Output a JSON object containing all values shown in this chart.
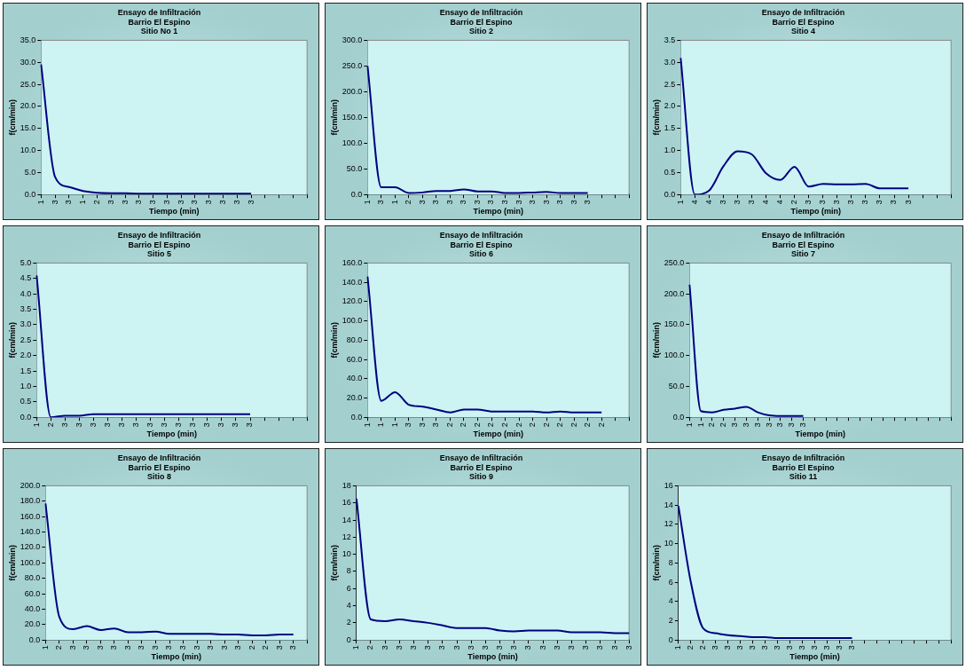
{
  "chart_data": [
    {
      "type": "line",
      "title": "Ensayo de Infiltración",
      "subtitle": "Barrio El Espino\nSitio No 1",
      "xlabel": "Tiempo (min)",
      "ylabel": "f(cm/min)",
      "marker": "none",
      "categories": [
        "1",
        "3",
        "3",
        "1",
        "2",
        "3",
        "3",
        "3",
        "3",
        "3",
        "3",
        "3",
        "3",
        "3",
        "3",
        "3",
        null,
        null,
        null,
        null
      ],
      "series": [
        {
          "color": "#000080",
          "values": [
            29.5,
            4.0,
            1.7,
            0.8,
            0.4,
            0.3,
            0.3,
            0.2,
            0.2,
            0.2,
            0.2,
            0.2,
            0.2,
            0.2,
            0.2,
            0.2,
            null,
            null,
            null,
            null
          ]
        }
      ],
      "ylim": [
        0,
        35
      ],
      "yticks": [
        {
          "value": 0,
          "label": "0.0"
        },
        {
          "value": 5,
          "label": "5.0"
        },
        {
          "value": 10,
          "label": "10.0"
        },
        {
          "value": 15,
          "label": "15.0"
        },
        {
          "value": 20,
          "label": "20.0"
        },
        {
          "value": 25,
          "label": "25.0"
        },
        {
          "value": 30,
          "label": "30.0"
        },
        {
          "value": 35,
          "label": "35.0"
        }
      ]
    },
    {
      "type": "line",
      "title": "Ensayo de Infiltración",
      "subtitle": "Barrio El Espino\nSitio 2",
      "xlabel": "Tiempo (min)",
      "ylabel": "f(cm/min)",
      "marker": "none",
      "categories": [
        "1",
        "3",
        "1",
        "2",
        "3",
        "3",
        "3",
        "3",
        "3",
        "3",
        "3",
        "3",
        "3",
        "3",
        "3",
        "3",
        "3",
        null,
        null,
        null
      ],
      "series": [
        {
          "color": "#000080",
          "values": [
            250,
            14,
            14,
            3,
            4,
            7,
            7,
            10,
            6,
            6,
            3,
            3,
            4,
            5,
            3,
            3,
            3,
            null,
            null,
            null
          ]
        }
      ],
      "ylim": [
        0,
        300
      ],
      "yticks": [
        {
          "value": 0,
          "label": "0.0"
        },
        {
          "value": 50,
          "label": "50.0"
        },
        {
          "value": 100,
          "label": "100.0"
        },
        {
          "value": 150,
          "label": "150.0"
        },
        {
          "value": 200,
          "label": "200.0"
        },
        {
          "value": 250,
          "label": "250.0"
        },
        {
          "value": 300,
          "label": "300.0"
        }
      ]
    },
    {
      "type": "line",
      "title": "Ensayo de Infiltración",
      "subtitle": "Barrio El Espino\nSitio 4",
      "xlabel": "Tiempo (min)",
      "ylabel": "f(cm/min)",
      "marker": "none",
      "categories": [
        "1",
        "4",
        "4",
        "3",
        "3",
        "3",
        "4",
        "4",
        "2",
        "3",
        "3",
        "3",
        "3",
        "3",
        "3",
        "3",
        "3",
        null,
        null,
        null
      ],
      "series": [
        {
          "color": "#000080",
          "values": [
            3.1,
            0.0,
            0.09,
            0.64,
            0.98,
            0.91,
            0.48,
            0.33,
            0.63,
            0.18,
            0.24,
            0.23,
            0.23,
            0.24,
            0.14,
            0.14,
            0.14,
            null,
            null,
            null
          ]
        }
      ],
      "ylim": [
        0,
        3.5
      ],
      "yticks": [
        {
          "value": 0,
          "label": "0.0"
        },
        {
          "value": 0.5,
          "label": "0.5"
        },
        {
          "value": 1,
          "label": "1.0"
        },
        {
          "value": 1.5,
          "label": "1.5"
        },
        {
          "value": 2,
          "label": "2.0"
        },
        {
          "value": 2.5,
          "label": "2.5"
        },
        {
          "value": 3,
          "label": "3.0"
        },
        {
          "value": 3.5,
          "label": "3.5"
        }
      ]
    },
    {
      "type": "line",
      "title": "Ensayo de Infiltración",
      "subtitle": "Barrio El Espino\nSitio 5",
      "xlabel": "Tiempo (min)",
      "ylabel": "f(cm/min)",
      "marker": "none",
      "categories": [
        "1",
        "2",
        "3",
        "3",
        "3",
        "3",
        "3",
        "3",
        "3",
        "3",
        "3",
        "3",
        "3",
        "3",
        "3",
        "3",
        null,
        null,
        null,
        null
      ],
      "series": [
        {
          "color": "#000080",
          "values": [
            4.6,
            0.0,
            0.05,
            0.05,
            0.1,
            0.1,
            0.1,
            0.1,
            0.1,
            0.1,
            0.1,
            0.1,
            0.1,
            0.1,
            0.1,
            0.1,
            null,
            null,
            null,
            null
          ]
        }
      ],
      "ylim": [
        0,
        5
      ],
      "yticks": [
        {
          "value": 0,
          "label": "0.0"
        },
        {
          "value": 0.5,
          "label": "0.5"
        },
        {
          "value": 1,
          "label": "1.0"
        },
        {
          "value": 1.5,
          "label": "1.5"
        },
        {
          "value": 2,
          "label": "2.0"
        },
        {
          "value": 2.5,
          "label": "2.5"
        },
        {
          "value": 3,
          "label": "3.0"
        },
        {
          "value": 3.5,
          "label": "3.5"
        },
        {
          "value": 4,
          "label": "4.0"
        },
        {
          "value": 4.5,
          "label": "4.5"
        },
        {
          "value": 5,
          "label": "5.0"
        }
      ]
    },
    {
      "type": "line",
      "title": "Ensayo de Infiltración",
      "subtitle": "Barrio El Espino\nSitio 6",
      "xlabel": "Tiempo (min)",
      "ylabel": "f(cm/min)",
      "marker": "none",
      "categories": [
        "1",
        "1",
        "1",
        "3",
        "3",
        "3",
        "2",
        "2",
        "2",
        "2",
        "2",
        "2",
        "2",
        "2",
        "2",
        "2",
        "2",
        "2",
        null,
        null
      ],
      "series": [
        {
          "color": "#000080",
          "values": [
            146,
            17,
            26,
            13,
            11,
            8,
            5,
            8,
            8,
            6,
            6,
            6,
            6,
            5,
            6,
            5,
            5,
            5,
            null,
            null
          ]
        }
      ],
      "ylim": [
        0,
        160
      ],
      "yticks": [
        {
          "value": 0,
          "label": "0.0"
        },
        {
          "value": 20,
          "label": "20.0"
        },
        {
          "value": 40,
          "label": "40.0"
        },
        {
          "value": 60,
          "label": "60.0"
        },
        {
          "value": 80,
          "label": "80.0"
        },
        {
          "value": 100,
          "label": "100.0"
        },
        {
          "value": 120,
          "label": "120.0"
        },
        {
          "value": 140,
          "label": "140.0"
        },
        {
          "value": 160,
          "label": "160.0"
        }
      ]
    },
    {
      "type": "line",
      "title": "Ensayo de Infiltración",
      "subtitle": "Barrio El Espino\nSitio 7",
      "xlabel": "Tiempo (min)",
      "ylabel": "f(cm/min)",
      "marker": "none",
      "categories": [
        "1",
        "1",
        "2",
        "2",
        "3",
        "3",
        "3",
        "3",
        "3",
        "3",
        "3",
        null,
        null,
        null,
        null,
        null,
        null,
        null,
        null,
        null,
        null,
        null,
        null,
        null
      ],
      "series": [
        {
          "color": "#000080",
          "values": [
            215,
            10,
            8,
            12,
            14,
            17,
            8,
            3,
            2,
            2,
            2,
            null,
            null,
            null,
            null,
            null,
            null,
            null,
            null,
            null,
            null,
            null,
            null,
            null
          ]
        }
      ],
      "ylim": [
        0,
        250
      ],
      "yticks": [
        {
          "value": 0,
          "label": "0.0"
        },
        {
          "value": 50,
          "label": "50.0"
        },
        {
          "value": 100,
          "label": "100.0"
        },
        {
          "value": 150,
          "label": "150.0"
        },
        {
          "value": 200,
          "label": "200.0"
        },
        {
          "value": 250,
          "label": "250.0"
        }
      ]
    },
    {
      "type": "line",
      "title": "Ensayo de Infiltración",
      "subtitle": "Barrio El Espino\nSitio 8",
      "xlabel": "Tiempo (min)",
      "ylabel": "f(cm/min)",
      "marker": "none",
      "categories": [
        "1",
        "2",
        "3",
        "3",
        "3",
        "3",
        "3",
        "3",
        "3",
        "3",
        "3",
        "3",
        "3",
        "3",
        "3",
        "2",
        "2",
        "3",
        "3",
        null
      ],
      "series": [
        {
          "color": "#000080",
          "values": [
            177,
            30,
            14,
            18,
            13,
            15,
            10,
            10,
            11,
            8,
            8,
            8,
            8,
            7,
            7,
            6,
            6,
            7,
            7,
            null
          ]
        }
      ],
      "ylim": [
        0,
        200
      ],
      "yticks": [
        {
          "value": 0,
          "label": "0.0"
        },
        {
          "value": 20,
          "label": "20.0"
        },
        {
          "value": 40,
          "label": "40.0"
        },
        {
          "value": 60,
          "label": "60.0"
        },
        {
          "value": 80,
          "label": "80.0"
        },
        {
          "value": 100,
          "label": "100.0"
        },
        {
          "value": 120,
          "label": "120.0"
        },
        {
          "value": 140,
          "label": "140.0"
        },
        {
          "value": 160,
          "label": "160.0"
        },
        {
          "value": 180,
          "label": "180.0"
        },
        {
          "value": 200,
          "label": "200.0"
        }
      ]
    },
    {
      "type": "line",
      "title": "Ensayo de Infiltración",
      "subtitle": "Barrio El Espino\nSitio 9",
      "xlabel": "Tiempo (min)",
      "ylabel": "f(cm/min)",
      "marker": "none",
      "categories": [
        "1",
        "2",
        "3",
        "3",
        "3",
        "3",
        "3",
        "3",
        "3",
        "3",
        "3",
        "3",
        "3",
        "3",
        "3",
        "3",
        "3",
        "3",
        "3",
        "3"
      ],
      "series": [
        {
          "color": "#000080",
          "values": [
            16.5,
            2.4,
            2.2,
            2.4,
            2.2,
            2.0,
            1.7,
            1.4,
            1.4,
            1.4,
            1.1,
            1.0,
            1.1,
            1.1,
            1.1,
            0.9,
            0.9,
            0.9,
            0.8,
            0.8
          ]
        }
      ],
      "ylim": [
        0,
        18
      ],
      "yticks": [
        0,
        2,
        4,
        6,
        8,
        10,
        12,
        14,
        16,
        18
      ]
    },
    {
      "type": "line",
      "title": "Ensayo de Infiltración",
      "subtitle": "Barrio El Espino\nSitio 11",
      "xlabel": "Tiempo (min)",
      "ylabel": "f(cm/min)",
      "marker": "none",
      "categories": [
        "1",
        "2",
        "2",
        "3",
        "3",
        "3",
        "3",
        "3",
        "3",
        "3",
        "3",
        "3",
        "3",
        "3",
        "3",
        null,
        null,
        null,
        null,
        null,
        null,
        null,
        null
      ],
      "series": [
        {
          "color": "#000080",
          "values": [
            13.9,
            6,
            1.2,
            0.7,
            0.5,
            0.4,
            0.3,
            0.3,
            0.2,
            0.2,
            0.2,
            0.2,
            0.2,
            0.2,
            0.2,
            null,
            null,
            null,
            null,
            null,
            null,
            null,
            null
          ]
        }
      ],
      "ylim": [
        0,
        16
      ],
      "yticks": [
        0,
        2,
        4,
        6,
        8,
        10,
        12,
        14,
        16
      ]
    }
  ]
}
